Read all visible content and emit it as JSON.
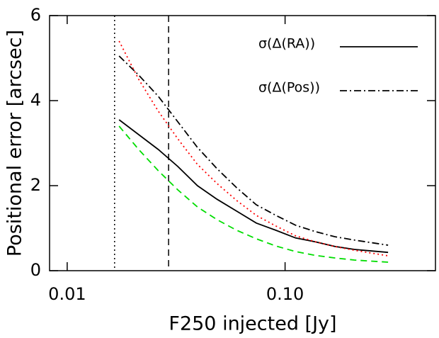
{
  "chart_data": {
    "type": "line",
    "xlabel": "F250 injected [Jy]",
    "ylabel": "Positional error [arcsec]",
    "xscale": "log",
    "xlim": [
      0.0083,
      0.49
    ],
    "ylim": [
      0,
      6
    ],
    "xticks": [
      0.01,
      {
        "value": 0.1,
        "label": "0.10"
      }
    ],
    "yticks": [
      0,
      2,
      4,
      6
    ],
    "legend": "upper right",
    "x": [
      0.0173,
      0.0213,
      0.0262,
      0.0322,
      0.0396,
      0.0487,
      0.06,
      0.0738,
      0.0908,
      0.1117,
      0.1375,
      0.169,
      0.208,
      0.297
    ],
    "series": [
      {
        "name": "σ(Δ(RA))",
        "color": "#000000",
        "dash": "solid",
        "values": [
          3.55,
          3.2,
          2.85,
          2.45,
          2.0,
          1.68,
          1.4,
          1.12,
          0.95,
          0.77,
          0.68,
          0.57,
          0.5,
          0.43
        ]
      },
      {
        "name": "σ(Δ(Pos))",
        "color": "#000000",
        "dash": "dashdot",
        "values": [
          5.05,
          4.6,
          4.1,
          3.5,
          2.9,
          2.4,
          1.95,
          1.55,
          1.3,
          1.07,
          0.92,
          0.8,
          0.72,
          0.6
        ]
      },
      {
        "color": "#ff0000",
        "dash": "dotted",
        "values": [
          5.4,
          4.5,
          3.75,
          3.1,
          2.5,
          2.05,
          1.65,
          1.3,
          1.05,
          0.82,
          0.68,
          0.57,
          0.48,
          0.35
        ]
      },
      {
        "color": "#00dd00",
        "dash": "dashed",
        "values": [
          3.4,
          2.85,
          2.35,
          1.9,
          1.5,
          1.2,
          0.95,
          0.75,
          0.58,
          0.45,
          0.36,
          0.3,
          0.25,
          0.2
        ]
      }
    ],
    "vlines": [
      {
        "x": 0.0165,
        "color": "#000000",
        "dash": "dotted"
      },
      {
        "x": 0.0292,
        "color": "#000000",
        "dash": "dashed"
      }
    ]
  }
}
